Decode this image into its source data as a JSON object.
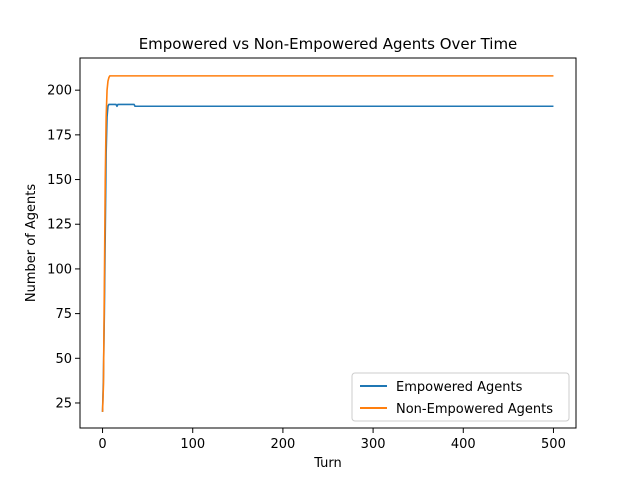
{
  "chart_data": {
    "type": "line",
    "title": "Empowered vs Non-Empowered Agents Over Time",
    "xlabel": "Turn",
    "ylabel": "Number of Agents",
    "xlim": [
      -25,
      525
    ],
    "ylim": [
      11,
      218
    ],
    "xticks": [
      0,
      100,
      200,
      300,
      400,
      500
    ],
    "yticks": [
      25,
      50,
      75,
      100,
      125,
      150,
      175,
      200
    ],
    "grid": false,
    "legend": {
      "position": "lower-right"
    },
    "series": [
      {
        "name": "Empowered Agents",
        "color": "#1f77b4",
        "points": [
          [
            0,
            20
          ],
          [
            1,
            40
          ],
          [
            2,
            75
          ],
          [
            3,
            120
          ],
          [
            4,
            165
          ],
          [
            5,
            185
          ],
          [
            6,
            191
          ],
          [
            7,
            192
          ],
          [
            8,
            192
          ],
          [
            15,
            192
          ],
          [
            16,
            191
          ],
          [
            17,
            192
          ],
          [
            35,
            192
          ],
          [
            36,
            191
          ],
          [
            500,
            191
          ]
        ]
      },
      {
        "name": "Non-Empowered Agents",
        "color": "#ff7f0e",
        "points": [
          [
            0,
            20
          ],
          [
            1,
            35
          ],
          [
            2,
            90
          ],
          [
            3,
            150
          ],
          [
            4,
            185
          ],
          [
            5,
            200
          ],
          [
            6,
            205
          ],
          [
            7,
            207
          ],
          [
            8,
            208
          ],
          [
            500,
            208
          ]
        ]
      }
    ]
  }
}
